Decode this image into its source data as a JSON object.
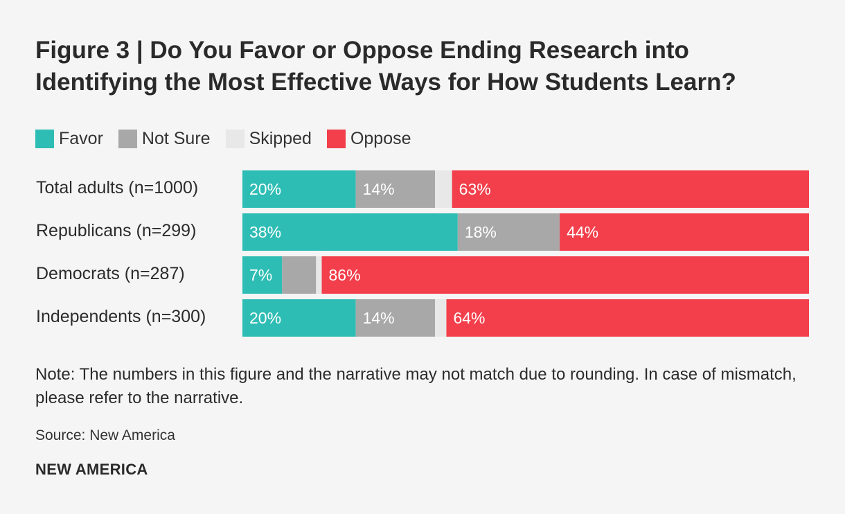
{
  "chart_data": {
    "type": "bar",
    "orientation": "horizontal",
    "stacked": true,
    "title": "Figure 3 | Do You Favor or Oppose Ending Research into Identifying the Most Effective Ways for How Students Learn?",
    "categories": [
      "Total adults (n=1000)",
      "Republicans (n=299)",
      "Democrats (n=287)",
      "Independents (n=300)"
    ],
    "series": [
      {
        "name": "Favor",
        "color": "#2ebdb4",
        "values": [
          20,
          38,
          7,
          20
        ],
        "labels": [
          "20%",
          "38%",
          "7%",
          "20%"
        ]
      },
      {
        "name": "Not Sure",
        "color": "#a8a8a8",
        "values": [
          14,
          18,
          6,
          14
        ],
        "labels": [
          "14%",
          "18%",
          "",
          "14%"
        ]
      },
      {
        "name": "Skipped",
        "color": "#e8e8e8",
        "values": [
          3,
          0,
          1,
          2
        ],
        "labels": [
          "",
          "",
          "",
          ""
        ]
      },
      {
        "name": "Oppose",
        "color": "#f23f4b",
        "values": [
          63,
          44,
          86,
          64
        ],
        "labels": [
          "63%",
          "44%",
          "86%",
          "64%"
        ]
      }
    ],
    "xlim": [
      0,
      100
    ],
    "legend": "top-left",
    "grid": false
  },
  "note": "Note: The numbers in this figure and the narrative may not match due to rounding. In case of mismatch, please refer to the narrative.",
  "source": "Source: New America",
  "brand": "NEW AMERICA"
}
